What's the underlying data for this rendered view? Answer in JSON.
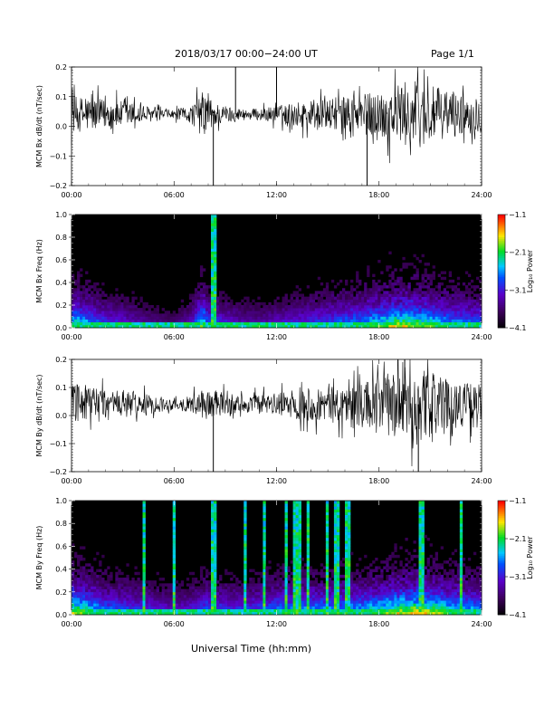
{
  "header": {
    "title": "2018/03/17  00:00−24:00 UT",
    "page": "Page 1/1"
  },
  "xlabel": "Universal Time (hh:mm)",
  "chart_data": [
    {
      "type": "line",
      "ylabel": "MCM Bx dB/dt (nT/sec)",
      "ylim": [
        -0.2,
        0.2
      ],
      "yticks": [
        "0.2",
        "0.1",
        "0.0",
        "−0.1",
        "−0.2"
      ],
      "xlim": [
        0,
        24
      ],
      "xticks": [
        "00:00",
        "06:00",
        "12:00",
        "18:00",
        "24:00"
      ],
      "baseline": 0.04,
      "amplitude_envelope": {
        "hours": [
          0,
          1,
          2,
          3,
          4,
          5,
          6,
          7,
          7.7,
          8,
          8.5,
          9,
          10,
          11,
          12,
          13,
          14,
          15,
          16,
          17,
          18,
          19,
          20,
          21,
          22,
          23,
          24
        ],
        "amp": [
          0.06,
          0.06,
          0.05,
          0.045,
          0.035,
          0.02,
          0.015,
          0.03,
          0.08,
          0.06,
          0.04,
          0.03,
          0.02,
          0.02,
          0.03,
          0.04,
          0.05,
          0.05,
          0.06,
          0.07,
          0.08,
          0.1,
          0.12,
          0.1,
          0.08,
          0.07,
          0.06
        ]
      },
      "spikes": [
        {
          "hour": 8.3,
          "y": -0.2
        },
        {
          "hour": 9.6,
          "y": 0.2
        },
        {
          "hour": 12.0,
          "y": 0.2
        },
        {
          "hour": 17.3,
          "y": -0.2
        }
      ]
    },
    {
      "type": "heatmap",
      "ylabel": "MCM Bx Freq (Hz)",
      "ylim": [
        0,
        1.0
      ],
      "yticks": [
        "1.0",
        "0.8",
        "0.6",
        "0.4",
        "0.2",
        "0.0"
      ],
      "xlim": [
        0,
        24
      ],
      "xticks": [
        "00:00",
        "06:00",
        "12:00",
        "18:00",
        "24:00"
      ],
      "colorbar": {
        "label": "Log₁₀ Power",
        "ticks": [
          "−1.1",
          "−2.1",
          "−3.1",
          "−4.1"
        ],
        "range": [
          -4.1,
          -1.1
        ]
      },
      "activity": {
        "hours": [
          0,
          1,
          2,
          3,
          4,
          5,
          6,
          7,
          7.7,
          8,
          9,
          10,
          11,
          12,
          13,
          14,
          15,
          16,
          17,
          18,
          19,
          20,
          21,
          22,
          23,
          24
        ],
        "level": [
          0.7,
          0.6,
          0.45,
          0.4,
          0.3,
          0.25,
          0.2,
          0.35,
          0.75,
          0.5,
          0.4,
          0.3,
          0.3,
          0.35,
          0.4,
          0.45,
          0.5,
          0.55,
          0.6,
          0.7,
          0.8,
          0.8,
          0.7,
          0.6,
          0.55,
          0.55
        ]
      },
      "bright_columns": [
        8.3
      ]
    },
    {
      "type": "line",
      "ylabel": "MCM By dB/dt (nT/sec)",
      "ylim": [
        -0.2,
        0.2
      ],
      "yticks": [
        "0.2",
        "0.1",
        "0.0",
        "−0.1",
        "−0.2"
      ],
      "xlim": [
        0,
        24
      ],
      "xticks": [
        "00:00",
        "06:00",
        "12:00",
        "18:00",
        "24:00"
      ],
      "baseline": 0.04,
      "amplitude_envelope": {
        "hours": [
          0,
          1,
          2,
          3,
          4,
          5,
          6,
          7,
          8,
          9,
          10,
          11,
          12,
          13,
          14,
          15,
          16,
          17,
          18,
          19,
          20,
          21,
          22,
          23,
          24
        ],
        "amp": [
          0.07,
          0.07,
          0.06,
          0.05,
          0.04,
          0.03,
          0.02,
          0.03,
          0.06,
          0.04,
          0.03,
          0.035,
          0.04,
          0.05,
          0.06,
          0.06,
          0.07,
          0.08,
          0.1,
          0.13,
          0.14,
          0.12,
          0.09,
          0.08,
          0.07
        ]
      },
      "spikes": [
        {
          "hour": 8.3,
          "y": -0.2
        },
        {
          "hour": 19.5,
          "y": 0.2
        },
        {
          "hour": 20.3,
          "y": -0.2
        }
      ]
    },
    {
      "type": "heatmap",
      "ylabel": "MCM By Freq (Hz)",
      "ylim": [
        0,
        1.0
      ],
      "yticks": [
        "1.0",
        "0.8",
        "0.6",
        "0.4",
        "0.2",
        "0.0"
      ],
      "xlim": [
        0,
        24
      ],
      "xticks": [
        "00:00",
        "06:00",
        "12:00",
        "18:00",
        "24:00"
      ],
      "colorbar": {
        "label": "Log₁₀ Power",
        "ticks": [
          "−1.1",
          "−2.1",
          "−3.1",
          "−4.1"
        ],
        "range": [
          -4.1,
          -1.1
        ]
      },
      "activity": {
        "hours": [
          0,
          1,
          2,
          3,
          4,
          5,
          6,
          7,
          8,
          9,
          10,
          11,
          12,
          13,
          14,
          15,
          16,
          17,
          18,
          19,
          20,
          21,
          22,
          23,
          24
        ],
        "level": [
          0.8,
          0.7,
          0.55,
          0.5,
          0.45,
          0.4,
          0.35,
          0.4,
          0.55,
          0.45,
          0.45,
          0.5,
          0.55,
          0.6,
          0.6,
          0.6,
          0.6,
          0.65,
          0.7,
          0.8,
          0.85,
          0.8,
          0.7,
          0.65,
          0.6
        ]
      },
      "bright_columns": [
        4.2,
        6.0,
        8.3,
        10.2,
        11.3,
        12.6,
        13.0,
        13.3,
        13.8,
        15.0,
        15.5,
        16.2,
        20.5,
        22.8
      ]
    }
  ]
}
